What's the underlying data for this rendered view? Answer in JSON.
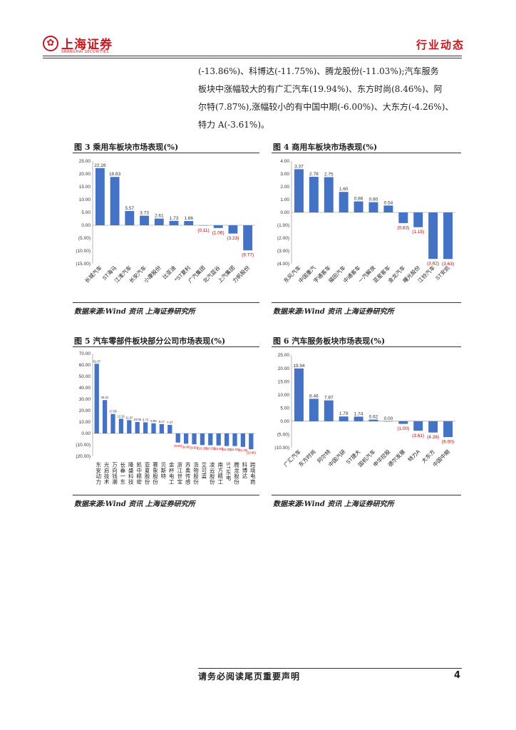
{
  "header": {
    "logo_text": "上海证券",
    "logo_sub": "SHANGHAI SECURITIES",
    "section": "行业动态"
  },
  "paragraph": [
    "(-13.86%)、科博达(-11.75%)、腾龙股份(-11.03%);汽车服务",
    "板块中涨幅较大的有广汇汽车(19.94%)、东方时尚(8.46%)、阿",
    "尔特(7.87%),涨幅较小的有中国中期(-6.00%)、大东方(-4.26%)、",
    "特力 A(-3.61%)。"
  ],
  "figures": {
    "fig3": {
      "title": "图 3 乘用车板块市场表现(%)",
      "source": "数据来源:Wind 资讯 上海证券研究所"
    },
    "fig4": {
      "title": "图 4 商用车板块市场表现(%)",
      "source": "数据来源:Wind 资讯 上海证券研究所"
    },
    "fig5": {
      "title": "图 5 汽车零部件板块部分公司市场表现(%)",
      "source": "数据来源:Wind 资讯 上海证券研究所"
    },
    "fig6": {
      "title": "图 6 汽车服务板块市场表现(%)",
      "source": "数据来源:Wind 资讯 上海证券研究所"
    }
  },
  "footer": {
    "notice": "请务必阅读尾页重要声明",
    "page": "4"
  },
  "colors": {
    "bar": "#4472c4",
    "negative_label": "#c00000",
    "brand": "#c8161d"
  },
  "chart_data": [
    {
      "id": "fig3",
      "type": "bar",
      "categories": [
        "长城汽车",
        "ST海马",
        "江淮汽车",
        "长安汽车",
        "小康股份",
        "比亚迪",
        "*ST夏利",
        "广汽集团",
        "北汽蓝谷",
        "上汽集团",
        "力帆股份"
      ],
      "values": [
        22.28,
        18.83,
        5.57,
        3.73,
        2.61,
        1.73,
        1.66,
        -0.11,
        -1.06,
        -3.23,
        -9.77
      ],
      "labels": [
        "22.28",
        "18.83",
        "5.57",
        "3.73",
        "2.61",
        "1.73",
        "1.66",
        "(0.11)",
        "(1.06)",
        "(3.23)",
        "(9.77)"
      ],
      "yticks": [
        "25.00",
        "20.00",
        "15.00",
        "10.00",
        "5.00",
        "0.00",
        "(5.00)",
        "(10.00)",
        "(15.00)"
      ],
      "ylim": [
        -15,
        25
      ]
    },
    {
      "id": "fig4",
      "type": "bar",
      "categories": [
        "东风汽车",
        "中国重汽",
        "宇通客车",
        "福田汽车",
        "中通客车",
        "一汽解放",
        "亚星客车",
        "金龙汽车",
        "曙光股份",
        "江铃汽车",
        "ST安凯"
      ],
      "values": [
        3.37,
        2.78,
        2.75,
        1.6,
        0.86,
        0.8,
        0.54,
        -0.83,
        -1.15,
        -3.62,
        -3.63
      ],
      "labels": [
        "3.37",
        "2.78",
        "2.75",
        "1.60",
        "0.86",
        "0.80",
        "0.54",
        "(0.83)",
        "(1.15)",
        "(3.62)",
        "(3.63)"
      ],
      "yticks": [
        "4.00",
        "3.00",
        "2.00",
        "1.00",
        "0.00",
        "(1.00)",
        "(2.00)",
        "(3.00)",
        "(4.00)"
      ],
      "ylim": [
        -4,
        4
      ]
    },
    {
      "id": "fig5",
      "type": "bar",
      "categories": [
        "东安动力",
        "光启技术",
        "万向钱潮",
        "长春一东",
        "隆盛科技",
        "凯中精密",
        "亚夏股份",
        "赛象股份",
        "贝斯特",
        "金杯电工",
        "浙江世宝",
        "苏奥传感",
        "浩物股份",
        "艾可蓝",
        "凌云股份",
        "南方精工",
        "ST东电",
        "腾龙股份",
        "科博达",
        "跨境电商"
      ],
      "values": [
        61.07,
        29.22,
        17.06,
        12.91,
        11.67,
        10.06,
        9.73,
        8.89,
        8.17,
        7.47,
        -8.0,
        -9.0,
        -9.5,
        -10.2,
        -10.33,
        -10.5,
        -11.0,
        -11.03,
        -11.75,
        -13.86
      ],
      "labels": [
        "61.07",
        "29.22",
        "17.06",
        "12.91",
        "11.67",
        "10.06",
        "9.73",
        "8.89",
        "8.17",
        "7.47",
        "(8.00)",
        "(9.00)",
        "(9.50)",
        "(10.20)",
        "(10.33)",
        "(10.50)",
        "(11.00)",
        "(11.03)",
        "(11.75)",
        "(13.86)"
      ],
      "yticks": [
        "70.00",
        "60.00",
        "50.00",
        "40.00",
        "30.00",
        "20.00",
        "10.00",
        "0.00",
        "(10.00)",
        "(20.00)"
      ],
      "ylim": [
        -20,
        70
      ]
    },
    {
      "id": "fig6",
      "type": "bar",
      "categories": [
        "广汇汽车",
        "东方时尚",
        "阿尔特",
        "中国汽研",
        "ST捷大",
        "国机汽车",
        "申华控股",
        "德尔发展",
        "特力A",
        "大东方",
        "中国中期"
      ],
      "values": [
        19.94,
        8.46,
        7.87,
        1.79,
        1.74,
        0.62,
        0.0,
        -1.0,
        -3.61,
        -4.26,
        -6.0
      ],
      "labels": [
        "19.94",
        "8.46",
        "7.87",
        "1.79",
        "1.74",
        "0.62",
        "0.00",
        "(1.00)",
        "(3.61)",
        "(4.26)",
        "(6.00)"
      ],
      "yticks": [
        "25.00",
        "20.00",
        "15.00",
        "10.00",
        "5.00",
        "0.00",
        "(5.00)",
        "(10.00)"
      ],
      "ylim": [
        -10,
        25
      ]
    }
  ]
}
